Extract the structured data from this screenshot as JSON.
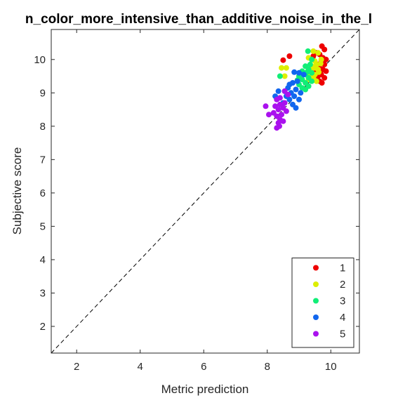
{
  "chart_data": {
    "type": "scatter",
    "title": "n_color_more_intensive_than_additive_noise_in_the_l",
    "xlabel": "Metric prediction",
    "ylabel": "Subjective score",
    "xlim": [
      1.2,
      10.9
    ],
    "ylim": [
      1.2,
      10.9
    ],
    "xticks": [
      2,
      4,
      6,
      8,
      10
    ],
    "yticks": [
      2,
      3,
      4,
      5,
      6,
      7,
      8,
      9,
      10
    ],
    "grid": false,
    "reference_line": {
      "style": "dashed",
      "color": "#000000",
      "slope": 1,
      "intercept": 0
    },
    "legend": {
      "position": "bottom-right",
      "entries": [
        "1",
        "2",
        "3",
        "4",
        "5"
      ]
    },
    "series": [
      {
        "name": "1",
        "color": "#ee0000",
        "points": [
          [
            9.72,
            10.4
          ],
          [
            8.7,
            10.1
          ],
          [
            9.55,
            10.2
          ],
          [
            9.8,
            10.3
          ],
          [
            8.5,
            9.98
          ],
          [
            9.65,
            10.15
          ],
          [
            9.75,
            10.05
          ],
          [
            9.7,
            9.95
          ],
          [
            9.85,
            10.0
          ],
          [
            9.6,
            9.85
          ],
          [
            9.8,
            9.85
          ],
          [
            9.65,
            9.75
          ],
          [
            9.75,
            9.7
          ],
          [
            9.85,
            9.65
          ],
          [
            9.7,
            9.55
          ],
          [
            9.6,
            9.5
          ],
          [
            9.8,
            9.45
          ],
          [
            9.65,
            9.35
          ],
          [
            9.72,
            9.3
          ],
          [
            9.45,
            10.1
          ],
          [
            9.5,
            9.6
          ]
        ]
      },
      {
        "name": "2",
        "color": "#ddee00",
        "points": [
          [
            9.45,
            10.25
          ],
          [
            9.6,
            10.2
          ],
          [
            9.3,
            10.05
          ],
          [
            9.5,
            9.95
          ],
          [
            8.6,
            9.75
          ],
          [
            8.45,
            9.75
          ],
          [
            8.55,
            9.5
          ],
          [
            9.55,
            9.85
          ],
          [
            9.4,
            9.8
          ],
          [
            9.6,
            9.7
          ],
          [
            9.5,
            9.55
          ],
          [
            9.35,
            9.5
          ],
          [
            9.45,
            9.45
          ],
          [
            9.55,
            9.35
          ],
          [
            9.62,
            9.62
          ],
          [
            9.38,
            9.65
          ],
          [
            9.68,
            9.88
          ],
          [
            9.3,
            9.4
          ],
          [
            9.5,
            9.75
          ],
          [
            9.7,
            10.0
          ]
        ]
      },
      {
        "name": "3",
        "color": "#11ee77",
        "points": [
          [
            9.28,
            10.25
          ],
          [
            9.4,
            10.0
          ],
          [
            8.4,
            9.5
          ],
          [
            9.2,
            9.8
          ],
          [
            9.3,
            9.7
          ],
          [
            9.1,
            9.65
          ],
          [
            9.2,
            9.55
          ],
          [
            9.0,
            9.5
          ],
          [
            9.3,
            9.45
          ],
          [
            9.1,
            9.4
          ],
          [
            9.4,
            9.35
          ],
          [
            9.2,
            9.3
          ],
          [
            9.0,
            9.25
          ],
          [
            9.3,
            9.2
          ],
          [
            9.1,
            9.15
          ],
          [
            9.2,
            9.1
          ],
          [
            9.4,
            9.6
          ],
          [
            8.95,
            9.38
          ],
          [
            9.25,
            9.62
          ],
          [
            9.35,
            9.85
          ]
        ]
      },
      {
        "name": "4",
        "color": "#1166ee",
        "points": [
          [
            8.85,
            9.62
          ],
          [
            9.0,
            9.6
          ],
          [
            9.15,
            9.55
          ],
          [
            8.8,
            9.3
          ],
          [
            8.95,
            9.35
          ],
          [
            8.7,
            9.25
          ],
          [
            8.65,
            9.15
          ],
          [
            8.9,
            9.1
          ],
          [
            9.05,
            9.0
          ],
          [
            8.75,
            9.0
          ],
          [
            8.55,
            9.05
          ],
          [
            8.35,
            9.05
          ],
          [
            8.85,
            8.9
          ],
          [
            8.6,
            8.9
          ],
          [
            8.25,
            8.9
          ],
          [
            8.7,
            8.8
          ],
          [
            8.8,
            8.65
          ],
          [
            8.9,
            8.55
          ],
          [
            8.5,
            8.7
          ],
          [
            9.0,
            8.8
          ]
        ]
      },
      {
        "name": "5",
        "color": "#aa11ee",
        "points": [
          [
            7.95,
            8.6
          ],
          [
            8.55,
            9.05
          ],
          [
            8.65,
            8.95
          ],
          [
            8.4,
            8.85
          ],
          [
            8.3,
            8.8
          ],
          [
            8.55,
            8.7
          ],
          [
            8.4,
            8.65
          ],
          [
            8.25,
            8.6
          ],
          [
            8.5,
            8.55
          ],
          [
            8.35,
            8.5
          ],
          [
            8.6,
            8.45
          ],
          [
            8.2,
            8.4
          ],
          [
            8.45,
            8.35
          ],
          [
            8.3,
            8.3
          ],
          [
            8.05,
            8.35
          ],
          [
            8.4,
            8.2
          ],
          [
            8.35,
            8.1
          ],
          [
            8.5,
            8.15
          ],
          [
            8.3,
            7.95
          ],
          [
            8.38,
            8.0
          ]
        ]
      }
    ]
  }
}
